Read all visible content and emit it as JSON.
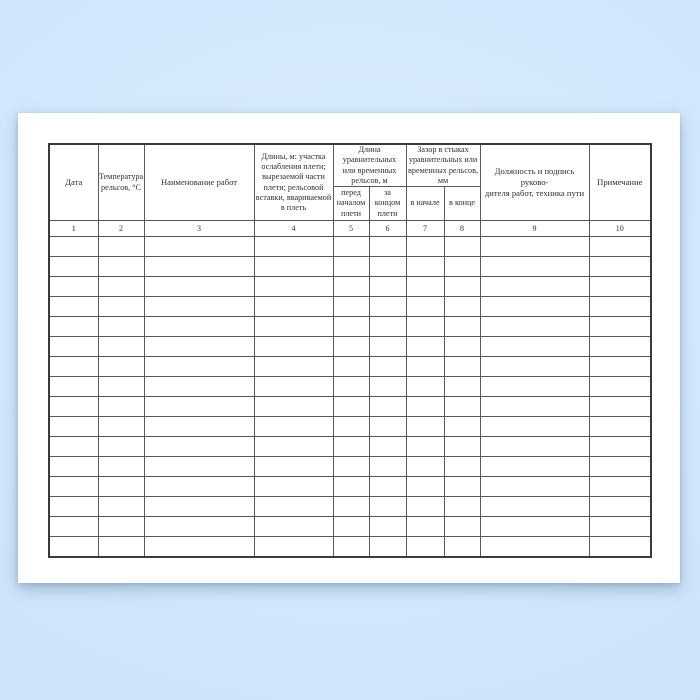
{
  "colors": {
    "background": "#d3e8fc",
    "paper": "#ffffff",
    "grid_line": "#595959",
    "outer_border": "#3a3a3a",
    "text": "#2f2f2f"
  },
  "table": {
    "headers": {
      "date": "Дата",
      "rail_temperature": "Температура\nрельсов, °С",
      "work_name": "Наименование работ",
      "lengths": "Длины, м:  участка\nослабления плети;\nвырезаемой части\nплети; рельсовой\nвставки, ввариваемой\nв плеть",
      "equalizing_rails_length_group": "Длина\nуравнительных\nили временных\nрельсов, м",
      "before_string_start": "перед\nначалом\nплети",
      "after_string_end": "за\nконцом\nплети",
      "joint_gap_group": "Зазор в стыках\nуравнительных или\nвременных рельсов,\nмм",
      "gap_at_start": "в начале",
      "gap_at_end": "в конце",
      "position_and_signature": "Должность и подпись руково-\nдителя работ, техника пути",
      "note": "Примечание"
    },
    "column_numbers": [
      "1",
      "2",
      "3",
      "4",
      "5",
      "6",
      "7",
      "8",
      "9",
      "10"
    ],
    "empty_row_count": 16
  }
}
